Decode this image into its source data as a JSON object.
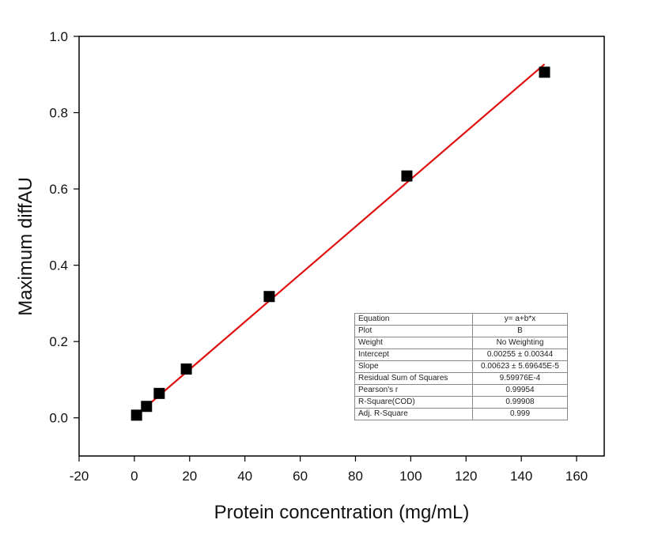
{
  "chart_data": {
    "type": "scatter",
    "xlabel": "Protein concentration (mg/mL)",
    "ylabel": "Maximum diffAU",
    "xlim": [
      -20,
      170
    ],
    "ylim": [
      -0.1,
      1.0
    ],
    "x_ticks": [
      "-20",
      "0",
      "20",
      "40",
      "60",
      "80",
      "100",
      "120",
      "140",
      "160"
    ],
    "y_ticks": [
      "0.0",
      "0.2",
      "0.4",
      "0.6",
      "0.8",
      "1.0"
    ],
    "series": [
      {
        "marker": "square",
        "color": "#000000",
        "points": [
          {
            "x": 0.8,
            "y": 0.007
          },
          {
            "x": 4.4,
            "y": 0.03
          },
          {
            "x": 9.0,
            "y": 0.064
          },
          {
            "x": 18.8,
            "y": 0.128
          },
          {
            "x": 48.8,
            "y": 0.318
          },
          {
            "x": 98.6,
            "y": 0.634
          },
          {
            "x": 148.4,
            "y": 0.906
          }
        ]
      }
    ],
    "fit_line": {
      "color": "#e01010",
      "x_range": [
        0.8,
        148.4
      ],
      "intercept": 0.00255,
      "slope": 0.00623
    },
    "fit_table": [
      {
        "label": "Equation",
        "value": "y= a+b*x"
      },
      {
        "label": "Plot",
        "value": "B"
      },
      {
        "label": "Weight",
        "value": "No Weighting"
      },
      {
        "label": "Intercept",
        "value": "0.00255 ± 0.00344"
      },
      {
        "label": "Slope",
        "value": "0.00623 ± 5.69645E-5"
      },
      {
        "label": "Residual Sum of Squares",
        "value": "9.59976E-4"
      },
      {
        "label": "Pearson's r",
        "value": "0.99954"
      },
      {
        "label": "R-Square(COD)",
        "value": "0.99908"
      },
      {
        "label": "Adj. R-Square",
        "value": "0.999"
      }
    ]
  }
}
